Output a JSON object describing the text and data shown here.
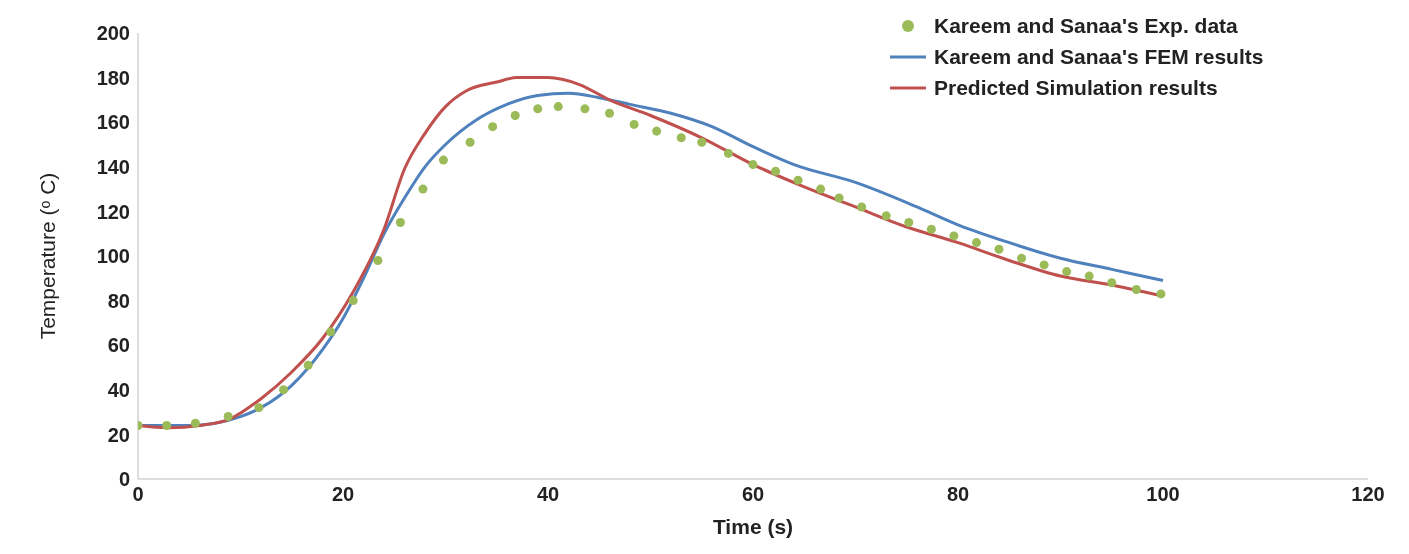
{
  "chart_data": {
    "type": "line",
    "xlabel": "Time (s)",
    "ylabel": "Temperature (ᵒ C)",
    "xlim": [
      0,
      120
    ],
    "xticks": [
      0,
      20,
      40,
      60,
      80,
      100,
      120
    ],
    "ylim": [
      0,
      200
    ],
    "yticks": [
      0,
      20,
      40,
      60,
      80,
      100,
      120,
      140,
      160,
      180,
      200
    ],
    "legend": "top right",
    "line_style": "solid",
    "series": [
      {
        "name": "Kareem and Sanaa's Exp. data",
        "type": "scatter",
        "marker": "circle",
        "color": "#9bbb59",
        "x": [
          0,
          2.8,
          5.6,
          8.8,
          11.8,
          14.2,
          16.6,
          18.8,
          21,
          23.4,
          25.6,
          27.8,
          29.8,
          32.4,
          34.6,
          36.8,
          39,
          41,
          43.6,
          46,
          48.4,
          50.6,
          53,
          55,
          57.6,
          60,
          62.2,
          64.4,
          66.6,
          68.4,
          70.6,
          73,
          75.2,
          77.4,
          79.6,
          81.8,
          84,
          86.2,
          88.4,
          90.6,
          92.8,
          95,
          97.4,
          99.8
        ],
        "values": [
          24,
          24,
          25,
          28,
          32,
          40,
          51,
          66,
          80,
          98,
          115,
          130,
          143,
          151,
          158,
          163,
          166,
          167,
          166,
          164,
          159,
          156,
          153,
          151,
          146,
          141,
          138,
          134,
          130,
          126,
          122,
          118,
          115,
          112,
          109,
          106,
          103,
          99,
          96,
          93,
          91,
          88,
          85,
          83
        ]
      },
      {
        "name": "Kareem and Sanaa's FEM results",
        "color": "#4f81bd",
        "x": [
          0,
          5,
          10,
          12,
          15,
          18,
          20,
          22,
          24,
          26,
          28,
          30,
          33,
          36,
          39,
          42,
          45,
          48,
          52,
          56,
          60,
          64,
          70,
          76,
          80,
          85,
          90,
          95,
          100
        ],
        "values": [
          24,
          24,
          28,
          32,
          42,
          58,
          72,
          90,
          110,
          126,
          140,
          150,
          161,
          168,
          172,
          173,
          171,
          168,
          164,
          158,
          149,
          141,
          133,
          122,
          114,
          106,
          99,
          94,
          89
        ]
      },
      {
        "name": "Predicted Simulation results",
        "color": "#c0504d",
        "x": [
          0,
          3,
          6,
          9,
          12,
          15,
          18,
          21,
          24,
          26,
          28,
          30,
          32,
          35,
          37,
          40,
          43,
          46,
          50,
          55,
          60,
          65,
          70,
          75,
          80,
          85,
          90,
          95,
          100
        ],
        "values": [
          24,
          23,
          24,
          27,
          36,
          48,
          63,
          84,
          112,
          139,
          155,
          167,
          174,
          178,
          180,
          180,
          177,
          170,
          163,
          153,
          141,
          131,
          122,
          113,
          106,
          98,
          91,
          87,
          82
        ]
      }
    ]
  }
}
